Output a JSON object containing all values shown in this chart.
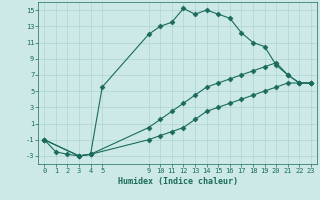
{
  "xlabel": "Humidex (Indice chaleur)",
  "ylabel": "",
  "bg_color": "#cce9e7",
  "grid_color": "#afd4d2",
  "line_color": "#1a6b5a",
  "xlim": [
    -0.5,
    23.5
  ],
  "ylim": [
    -4,
    16
  ],
  "yticks": [
    -3,
    -1,
    1,
    3,
    5,
    7,
    9,
    11,
    13,
    15
  ],
  "xticks": [
    0,
    1,
    2,
    3,
    4,
    5,
    9,
    10,
    11,
    12,
    13,
    14,
    15,
    16,
    17,
    18,
    19,
    20,
    21,
    22,
    23
  ],
  "line1_x": [
    0,
    1,
    2,
    3,
    4,
    5,
    9,
    10,
    11,
    12,
    13,
    14,
    15,
    16,
    17,
    18,
    19,
    20,
    21,
    22,
    23
  ],
  "line1_y": [
    -1,
    -2.5,
    -2.8,
    -3,
    -2.8,
    5.5,
    12,
    13,
    13.5,
    15.2,
    14.5,
    15,
    14.5,
    14,
    12.2,
    11,
    10.5,
    8.2,
    7,
    6,
    6
  ],
  "line2_x": [
    0,
    3,
    4,
    9,
    10,
    11,
    12,
    13,
    14,
    15,
    16,
    17,
    18,
    19,
    20,
    21,
    22,
    23
  ],
  "line2_y": [
    -1,
    -3,
    -2.8,
    0.5,
    1.5,
    2.5,
    3.5,
    4.5,
    5.5,
    6,
    6.5,
    7,
    7.5,
    8,
    8.5,
    7,
    6,
    6
  ],
  "line3_x": [
    0,
    3,
    4,
    9,
    10,
    11,
    12,
    13,
    14,
    15,
    16,
    17,
    18,
    19,
    20,
    21,
    22,
    23
  ],
  "line3_y": [
    -1,
    -3,
    -2.8,
    -1,
    -0.5,
    0,
    0.5,
    1.5,
    2.5,
    3,
    3.5,
    4,
    4.5,
    5,
    5.5,
    6,
    6,
    6
  ]
}
